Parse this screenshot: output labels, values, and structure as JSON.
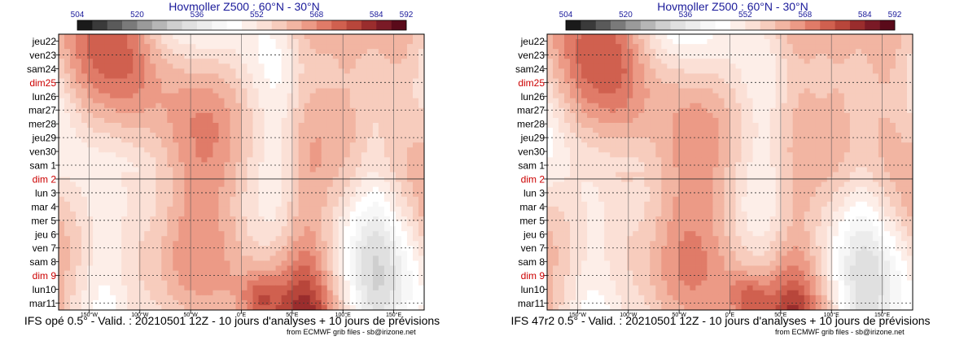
{
  "colors": {
    "scale": [
      "#1a1a1a",
      "#3a3a3a",
      "#5a5a5a",
      "#7a7a7a",
      "#9a9a9a",
      "#b6b6b6",
      "#cfcfcf",
      "#e0e0e0",
      "#ececec",
      "#f7f7f7",
      "#ffffff",
      "#fdeee8",
      "#fbe0d6",
      "#f7ccbd",
      "#f2b5a2",
      "#ec9a86",
      "#e07b68",
      "#d0604f",
      "#b8463b",
      "#9a2d2d",
      "#7a1a26",
      "#5a0a1a"
    ],
    "day_label_normal": "#000000",
    "day_label_sunday": "#cc0000",
    "grid": "#555555"
  },
  "chart_data": [
    {
      "type": "heatmap",
      "panel": "left",
      "title": "Hovmoller Z500 : 60°N - 30°N",
      "colorbar_ticks": [
        "504",
        "520",
        "536",
        "552",
        "568",
        "584",
        "592"
      ],
      "colorbar_levels": [
        504,
        506,
        508,
        510,
        512,
        514,
        516,
        518,
        520,
        524,
        528,
        532,
        536,
        540,
        544,
        548,
        552,
        556,
        560,
        564,
        568,
        572,
        576,
        580,
        584,
        588,
        592
      ],
      "y_labels": [
        "jeu22",
        "ven23",
        "sam24",
        "dim25",
        "lun26",
        "mar27",
        "mer28",
        "jeu29",
        "ven30",
        "sam 1",
        "dim 2",
        "lun 3",
        "mar 4",
        "mer 5",
        "jeu 6",
        "ven 7",
        "sam 8",
        "dim 9",
        "lun10",
        "mar11"
      ],
      "y_sunday": [
        "dim25",
        "dim 2",
        "dim 9"
      ],
      "x_ticks": [
        "150°W",
        "100°W",
        "50°W",
        "0°E",
        "50°E",
        "100°E",
        "150°E"
      ],
      "x_tick_values": [
        -150,
        -100,
        -50,
        0,
        50,
        100,
        150
      ],
      "xlim": [
        -180,
        180
      ],
      "analysis_forecast_split": "dim 2",
      "footer": "IFS opé 0.5° - Valid. : 20210501 12Z - 10 jours d'analyses + 10 jours de prévisions",
      "credit": "from ECMWF grib files - sb@irizone.net"
    },
    {
      "type": "heatmap",
      "panel": "right",
      "title": "Hovmoller Z500 : 60°N - 30°N",
      "colorbar_ticks": [
        "504",
        "520",
        "536",
        "552",
        "568",
        "584",
        "592"
      ],
      "colorbar_levels": [
        504,
        506,
        508,
        510,
        512,
        514,
        516,
        518,
        520,
        524,
        528,
        532,
        536,
        540,
        544,
        548,
        552,
        556,
        560,
        564,
        568,
        572,
        576,
        580,
        584,
        588,
        592
      ],
      "y_labels": [
        "jeu22",
        "ven23",
        "sam24",
        "dim25",
        "lun26",
        "mar27",
        "mer28",
        "jeu29",
        "ven30",
        "sam 1",
        "dim 2",
        "lun 3",
        "mar 4",
        "mer 5",
        "jeu 6",
        "ven 7",
        "sam 8",
        "dim 9",
        "lun10",
        "mar11"
      ],
      "y_sunday": [
        "dim25",
        "dim 2",
        "dim 9"
      ],
      "x_ticks": [
        "150°W",
        "100°W",
        "50°W",
        "0°E",
        "50°E",
        "100°E",
        "150°E"
      ],
      "x_tick_values": [
        -150,
        -100,
        -50,
        0,
        50,
        100,
        150
      ],
      "xlim": [
        -180,
        180
      ],
      "analysis_forecast_split": "dim 2",
      "footer": "IFS 47r2 0.5° - Valid. : 20210501 12Z - 10 jours d'analyses + 10 jours de prévisions",
      "credit": "from ECMWF grib files - sb@irizone.net"
    }
  ]
}
